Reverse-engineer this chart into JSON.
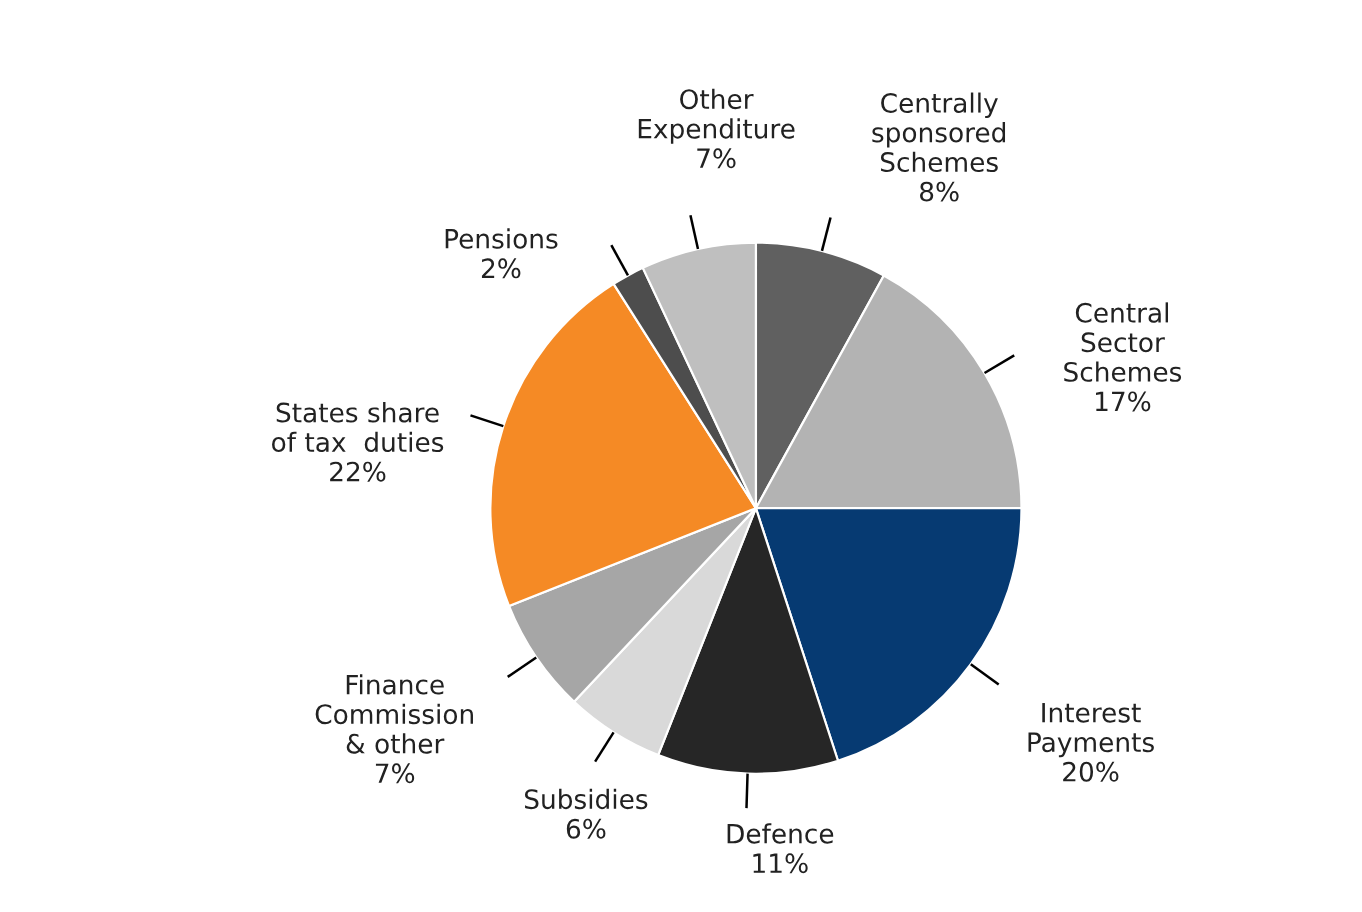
{
  "chart_data": {
    "type": "pie",
    "categories": [
      "Centrally\nsponsored\nSchemes",
      "Central\nSector\nSchemes",
      "Interest\nPayments",
      "Defence",
      "Subsidies",
      "Finance\nCommission\n& other",
      "States share\nof tax  duties",
      "Pensions",
      "Other\nExpenditure"
    ],
    "values": [
      8,
      17,
      20,
      11,
      6,
      7,
      22,
      2,
      7
    ],
    "value_labels": [
      "8%",
      "17%",
      "20%",
      "11%",
      "6%",
      "7%",
      "22%",
      "2%",
      "7%"
    ],
    "colors": [
      "#606060",
      "#b3b3b3",
      "#063a72",
      "#262626",
      "#d9d9d9",
      "#a6a6a6",
      "#f58a25",
      "#4d4d4d",
      "#bfbfbf"
    ]
  }
}
